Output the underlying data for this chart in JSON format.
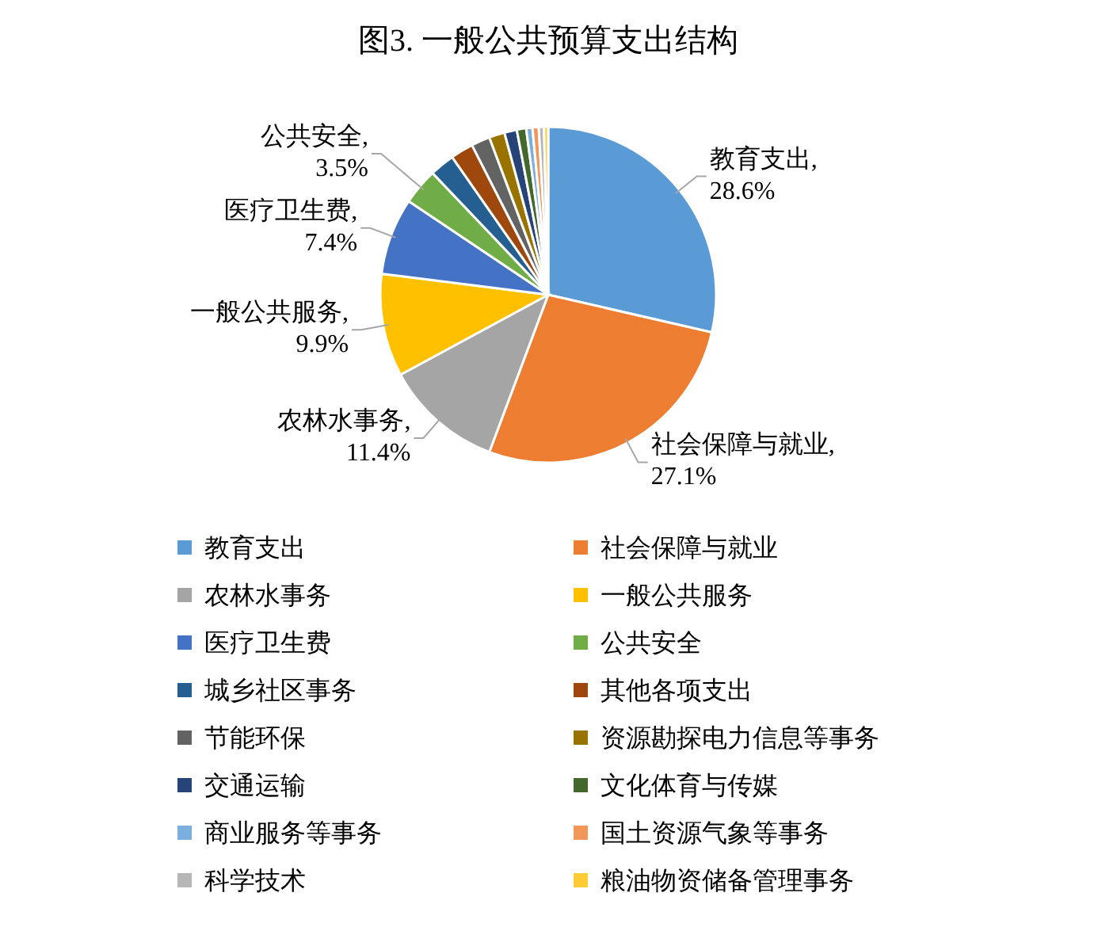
{
  "chart_data": {
    "type": "pie",
    "title": "图3. 一般公共预算支出结构",
    "categories": [
      "教育支出",
      "社会保障与就业",
      "农林水事务",
      "一般公共服务",
      "医疗卫生费",
      "公共安全",
      "城乡社区事务",
      "其他各项支出",
      "节能环保",
      "资源勘探电力信息等事务",
      "交通运输",
      "文化体育与传媒",
      "商业服务等事务",
      "国土资源气象等事务",
      "科学技术",
      "粮油物资储备管理事务"
    ],
    "values": [
      28.6,
      27.1,
      11.4,
      9.9,
      7.4,
      3.5,
      2.4,
      2.2,
      1.8,
      1.5,
      1.2,
      0.9,
      0.6,
      0.6,
      0.5,
      0.4
    ],
    "value_labels": [
      "教育支出,\n28.6%",
      "社会保障与就业,\n27.1%",
      "农林水事务,\n11.4%",
      "一般公共服务,\n9.9%",
      "医疗卫生费,\n7.4%",
      "公共安全,\n3.5%",
      null,
      null,
      null,
      null,
      null,
      null,
      null,
      null,
      null,
      null
    ],
    "colors": [
      "#5b9bd5",
      "#ed7d31",
      "#a5a5a5",
      "#ffc000",
      "#4472c4",
      "#70ad47",
      "#255e91",
      "#9e480e",
      "#636363",
      "#997300",
      "#264478",
      "#43682b",
      "#7cafdd",
      "#f1975a",
      "#b7b7b7",
      "#ffcd33"
    ],
    "legend": "bottom"
  }
}
